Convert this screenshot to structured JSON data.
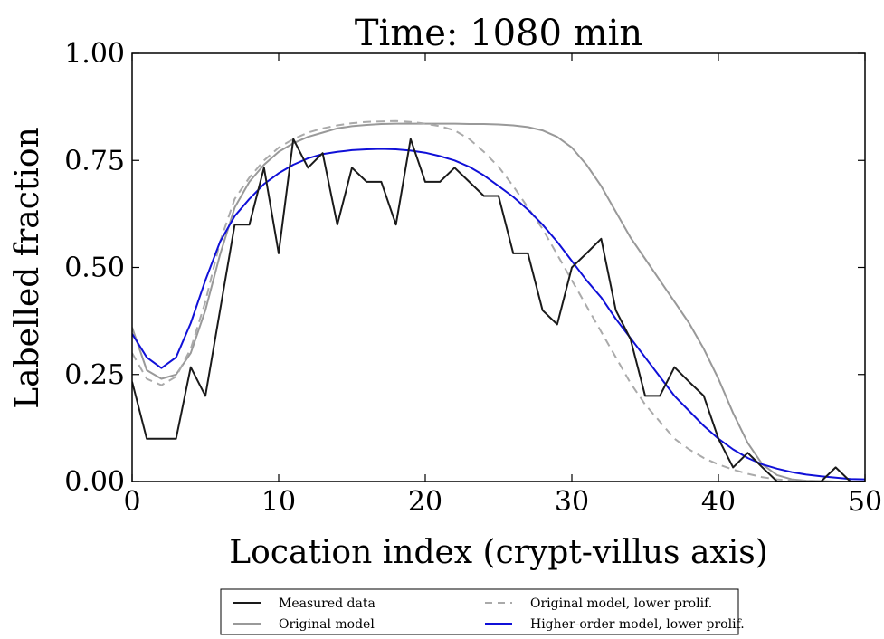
{
  "chart_data": {
    "type": "line",
    "title": "Time: 1080 min",
    "xlabel": "Location index (crypt-villus axis)",
    "ylabel": "Labelled fraction",
    "xlim": [
      0,
      50
    ],
    "ylim": [
      0,
      1.0
    ],
    "xticks": [
      0,
      10,
      20,
      30,
      40,
      50
    ],
    "xtick_labels": [
      "0",
      "10",
      "20",
      "30",
      "40",
      "50"
    ],
    "yticks": [
      0,
      0.25,
      0.5,
      0.75,
      1.0
    ],
    "ytick_labels": [
      "0.00",
      "0.25",
      "0.50",
      "0.75",
      "1.00"
    ],
    "grid": false,
    "legend_placement": "bottom-center",
    "series": [
      {
        "name": "Measured data",
        "color": "#1a1a1a",
        "dash": "solid",
        "x": [
          0,
          1,
          2,
          3,
          4,
          5,
          6,
          7,
          8,
          9,
          10,
          11,
          12,
          13,
          14,
          15,
          16,
          17,
          18,
          19,
          20,
          21,
          22,
          23,
          24,
          25,
          26,
          27,
          28,
          29,
          30,
          31,
          32,
          33,
          34,
          35,
          36,
          37,
          38,
          39,
          40,
          41,
          42,
          43,
          44,
          45,
          46,
          47,
          48,
          49,
          50
        ],
        "y": [
          0.233,
          0.1,
          0.1,
          0.1,
          0.267,
          0.2,
          0.4,
          0.6,
          0.6,
          0.733,
          0.533,
          0.8,
          0.733,
          0.767,
          0.6,
          0.733,
          0.7,
          0.7,
          0.6,
          0.8,
          0.7,
          0.7,
          0.733,
          0.7,
          0.667,
          0.667,
          0.533,
          0.533,
          0.4,
          0.367,
          0.5,
          0.533,
          0.567,
          0.4,
          0.333,
          0.2,
          0.2,
          0.267,
          0.233,
          0.2,
          0.1,
          0.033,
          0.067,
          0.033,
          0.0,
          0.0,
          0.0,
          0.0,
          0.033,
          0.0,
          0.0
        ]
      },
      {
        "name": "Original model",
        "color": "#999999",
        "dash": "solid",
        "x": [
          0,
          1,
          2,
          3,
          4,
          5,
          6,
          7,
          8,
          9,
          10,
          11,
          12,
          13,
          14,
          15,
          16,
          17,
          18,
          19,
          20,
          21,
          22,
          23,
          24,
          25,
          26,
          27,
          28,
          29,
          30,
          31,
          32,
          33,
          34,
          35,
          36,
          37,
          38,
          39,
          40,
          41,
          42,
          43,
          44,
          45,
          46,
          47,
          48,
          49,
          50
        ],
        "y": [
          0.36,
          0.26,
          0.24,
          0.25,
          0.3,
          0.4,
          0.53,
          0.64,
          0.7,
          0.74,
          0.77,
          0.79,
          0.805,
          0.815,
          0.825,
          0.83,
          0.833,
          0.835,
          0.836,
          0.836,
          0.836,
          0.836,
          0.836,
          0.835,
          0.835,
          0.834,
          0.832,
          0.828,
          0.82,
          0.805,
          0.78,
          0.74,
          0.69,
          0.63,
          0.57,
          0.52,
          0.47,
          0.42,
          0.37,
          0.31,
          0.24,
          0.16,
          0.09,
          0.04,
          0.015,
          0.005,
          0.002,
          0.001,
          0.0,
          0.0,
          0.0
        ]
      },
      {
        "name": "Original model, lower prolif.",
        "color": "#aaaaaa",
        "dash": "dashed",
        "x": [
          0,
          1,
          2,
          3,
          4,
          5,
          6,
          7,
          8,
          9,
          10,
          11,
          12,
          13,
          14,
          15,
          16,
          17,
          18,
          19,
          20,
          21,
          22,
          23,
          24,
          25,
          26,
          27,
          28,
          29,
          30,
          31,
          32,
          33,
          34,
          35,
          36,
          37,
          38,
          39,
          40,
          41,
          42,
          43,
          44,
          45,
          46,
          47,
          48,
          49,
          50
        ],
        "y": [
          0.3,
          0.24,
          0.225,
          0.245,
          0.31,
          0.42,
          0.56,
          0.66,
          0.71,
          0.75,
          0.78,
          0.8,
          0.815,
          0.825,
          0.832,
          0.837,
          0.84,
          0.841,
          0.842,
          0.84,
          0.836,
          0.83,
          0.82,
          0.8,
          0.77,
          0.735,
          0.69,
          0.64,
          0.59,
          0.53,
          0.47,
          0.41,
          0.35,
          0.29,
          0.23,
          0.18,
          0.14,
          0.1,
          0.075,
          0.055,
          0.04,
          0.028,
          0.018,
          0.01,
          0.005,
          0.002,
          0.001,
          0.0,
          0.0,
          0.0,
          0.0
        ]
      },
      {
        "name": "Higher-order model, lower prolif.",
        "color": "#1010d8",
        "dash": "solid",
        "x": [
          0,
          1,
          2,
          3,
          4,
          5,
          6,
          7,
          8,
          9,
          10,
          11,
          12,
          13,
          14,
          15,
          16,
          17,
          18,
          19,
          20,
          21,
          22,
          23,
          24,
          25,
          26,
          27,
          28,
          29,
          30,
          31,
          32,
          33,
          34,
          35,
          36,
          37,
          38,
          39,
          40,
          41,
          42,
          43,
          44,
          45,
          46,
          47,
          48,
          49,
          50
        ],
        "y": [
          0.345,
          0.29,
          0.265,
          0.29,
          0.37,
          0.47,
          0.56,
          0.62,
          0.66,
          0.695,
          0.72,
          0.74,
          0.755,
          0.765,
          0.77,
          0.774,
          0.776,
          0.777,
          0.776,
          0.773,
          0.768,
          0.76,
          0.75,
          0.735,
          0.715,
          0.69,
          0.665,
          0.635,
          0.6,
          0.56,
          0.515,
          0.47,
          0.43,
          0.38,
          0.335,
          0.29,
          0.245,
          0.2,
          0.165,
          0.13,
          0.1,
          0.075,
          0.055,
          0.04,
          0.03,
          0.022,
          0.016,
          0.012,
          0.009,
          0.006,
          0.005
        ]
      }
    ]
  }
}
